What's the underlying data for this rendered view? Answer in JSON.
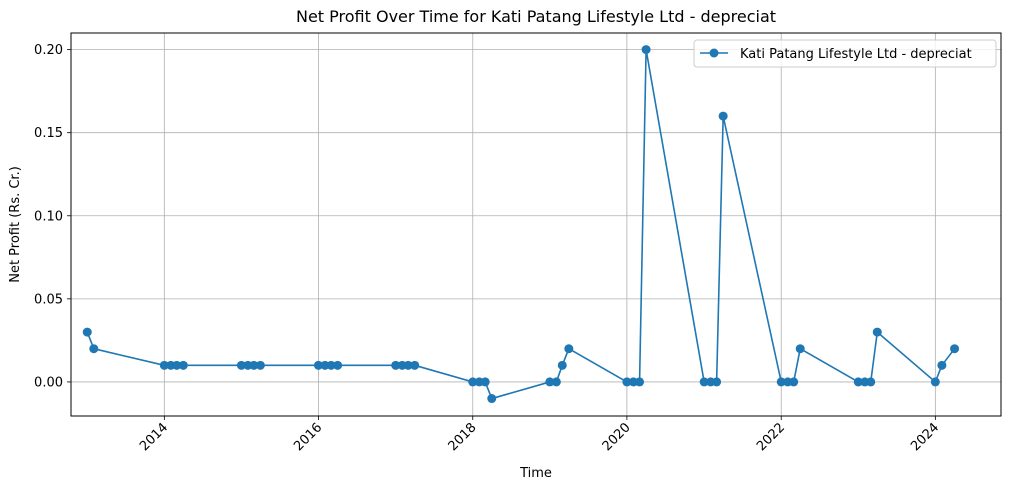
{
  "chart_data": {
    "type": "line",
    "title": "Net Profit Over Time for Kati Patang Lifestyle Ltd - depreciat",
    "xlabel": "Time",
    "ylabel": "Net Profit (Rs. Cr.)",
    "x_ticks": [
      "2014",
      "2016",
      "2018",
      "2020",
      "2022",
      "2024"
    ],
    "y_ticks": [
      "0.00",
      "0.05",
      "0.10",
      "0.15",
      "0.20"
    ],
    "xlim": [
      "2012-10-16",
      "2024-11-07"
    ],
    "ylim": [
      -0.0205,
      0.21
    ],
    "grid": true,
    "legend_position": "top-right",
    "series": [
      {
        "name": "Kati Patang Lifestyle Ltd - depreciat",
        "color": "#1f77b4",
        "marker": "circle",
        "points": [
          {
            "x": "2013-01-01",
            "y": 0.03
          },
          {
            "x": "2013-02-01",
            "y": 0.02
          },
          {
            "x": "2014-01-01",
            "y": 0.01
          },
          {
            "x": "2014-02-01",
            "y": 0.01
          },
          {
            "x": "2014-03-01",
            "y": 0.01
          },
          {
            "x": "2014-04-01",
            "y": 0.01
          },
          {
            "x": "2015-01-01",
            "y": 0.01
          },
          {
            "x": "2015-02-01",
            "y": 0.01
          },
          {
            "x": "2015-03-01",
            "y": 0.01
          },
          {
            "x": "2015-04-01",
            "y": 0.01
          },
          {
            "x": "2016-01-01",
            "y": 0.01
          },
          {
            "x": "2016-02-01",
            "y": 0.01
          },
          {
            "x": "2016-03-01",
            "y": 0.01
          },
          {
            "x": "2016-04-01",
            "y": 0.01
          },
          {
            "x": "2017-01-01",
            "y": 0.01
          },
          {
            "x": "2017-02-01",
            "y": 0.01
          },
          {
            "x": "2017-03-01",
            "y": 0.01
          },
          {
            "x": "2017-04-01",
            "y": 0.01
          },
          {
            "x": "2018-01-01",
            "y": 0.0
          },
          {
            "x": "2018-02-01",
            "y": 0.0
          },
          {
            "x": "2018-03-01",
            "y": 0.0
          },
          {
            "x": "2018-04-01",
            "y": -0.01
          },
          {
            "x": "2019-01-01",
            "y": 0.0
          },
          {
            "x": "2019-02-01",
            "y": 0.0
          },
          {
            "x": "2019-03-01",
            "y": 0.01
          },
          {
            "x": "2019-04-01",
            "y": 0.02
          },
          {
            "x": "2020-01-01",
            "y": 0.0
          },
          {
            "x": "2020-02-01",
            "y": 0.0
          },
          {
            "x": "2020-03-01",
            "y": 0.0
          },
          {
            "x": "2020-04-01",
            "y": 0.2
          },
          {
            "x": "2021-01-01",
            "y": 0.0
          },
          {
            "x": "2021-02-01",
            "y": 0.0
          },
          {
            "x": "2021-03-01",
            "y": 0.0
          },
          {
            "x": "2021-04-01",
            "y": 0.16
          },
          {
            "x": "2022-01-01",
            "y": 0.0
          },
          {
            "x": "2022-02-01",
            "y": 0.0
          },
          {
            "x": "2022-03-01",
            "y": 0.0
          },
          {
            "x": "2022-04-01",
            "y": 0.02
          },
          {
            "x": "2023-01-01",
            "y": 0.0
          },
          {
            "x": "2023-02-01",
            "y": 0.0
          },
          {
            "x": "2023-03-01",
            "y": 0.0
          },
          {
            "x": "2023-04-01",
            "y": 0.03
          },
          {
            "x": "2024-01-01",
            "y": 0.0
          },
          {
            "x": "2024-02-01",
            "y": 0.01
          },
          {
            "x": "2024-04-01",
            "y": 0.02
          }
        ]
      }
    ]
  }
}
